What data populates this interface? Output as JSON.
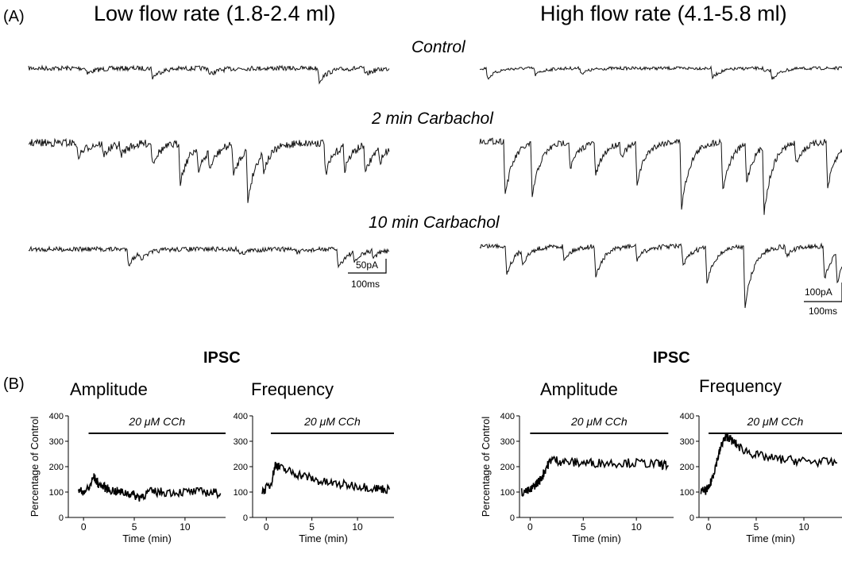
{
  "panel_a": {
    "label": "(A)",
    "left_title": "Low flow rate (1.8-2.4 ml)",
    "right_title": "High flow rate (4.1-5.8 ml)",
    "conditions": [
      "Control",
      "2 min Carbachol",
      "10 min Carbachol"
    ],
    "scale_left": {
      "current": "50pA",
      "time": "100ms"
    },
    "scale_right": {
      "current": "100pA",
      "time": "100ms"
    }
  },
  "panel_b": {
    "label": "(B)",
    "left_group_title": "IPSC",
    "right_group_title": "IPSC"
  },
  "chart_data": [
    {
      "type": "line",
      "title": "Amplitude",
      "xlabel": "Time (min)",
      "ylabel": "Percentage of Control",
      "annotation": "20 μM CCh",
      "drug_bar": [
        0.5,
        14
      ],
      "xlim": [
        -1.5,
        14
      ],
      "ylim": [
        0,
        400
      ],
      "xticks": [
        0,
        5,
        10
      ],
      "yticks": [
        0,
        100,
        200,
        300,
        400
      ],
      "x": [
        -0.5,
        0.5,
        1.0,
        1.5,
        2.5,
        3.5,
        4.5,
        5.5,
        6.5,
        8.0,
        10.0,
        12.0,
        13.5
      ],
      "y": [
        100,
        110,
        160,
        130,
        110,
        100,
        95,
        80,
        100,
        100,
        100,
        100,
        95
      ]
    },
    {
      "type": "line",
      "title": "Frequency",
      "xlabel": "Time (min)",
      "ylabel": "",
      "annotation": "20 μM CCh",
      "drug_bar": [
        0.5,
        14
      ],
      "xlim": [
        -1.5,
        14
      ],
      "ylim": [
        0,
        400
      ],
      "xticks": [
        0,
        5,
        10
      ],
      "yticks": [
        0,
        100,
        200,
        300,
        400
      ],
      "x": [
        -0.5,
        0.5,
        1.0,
        1.5,
        3.0,
        4.5,
        6.0,
        8.0,
        10.0,
        12.0,
        13.5
      ],
      "y": [
        100,
        130,
        210,
        195,
        175,
        160,
        140,
        130,
        125,
        115,
        110
      ]
    },
    {
      "type": "line",
      "title": "Amplitude",
      "xlabel": "Time (min)",
      "ylabel": "Percentage of Control",
      "annotation": "20 μM CCh",
      "drug_bar": [
        0,
        13
      ],
      "xlim": [
        -1.0,
        13.5
      ],
      "ylim": [
        0,
        400
      ],
      "xticks": [
        0,
        5,
        10
      ],
      "yticks": [
        0,
        100,
        200,
        300,
        400
      ],
      "x": [
        -0.8,
        0,
        0.5,
        1.0,
        1.5,
        2.0,
        3.0,
        4.5,
        6.0,
        8.0,
        10.0,
        12.0,
        13.0
      ],
      "y": [
        100,
        105,
        130,
        150,
        195,
        230,
        220,
        215,
        215,
        215,
        215,
        210,
        205
      ]
    },
    {
      "type": "line",
      "title": "Frequency",
      "xlabel": "Time (min)",
      "ylabel": "",
      "annotation": "20 μM CCh",
      "drug_bar": [
        0,
        14
      ],
      "xlim": [
        -1.0,
        14
      ],
      "ylim": [
        0,
        400
      ],
      "xticks": [
        0,
        5,
        10
      ],
      "yticks": [
        0,
        100,
        200,
        300,
        400
      ],
      "x": [
        -0.8,
        0,
        0.5,
        1.0,
        1.5,
        2.0,
        2.5,
        3.5,
        5.0,
        7.0,
        9.0,
        11.0,
        13.5
      ],
      "y": [
        100,
        110,
        170,
        240,
        300,
        320,
        300,
        270,
        245,
        230,
        225,
        220,
        215
      ]
    }
  ]
}
